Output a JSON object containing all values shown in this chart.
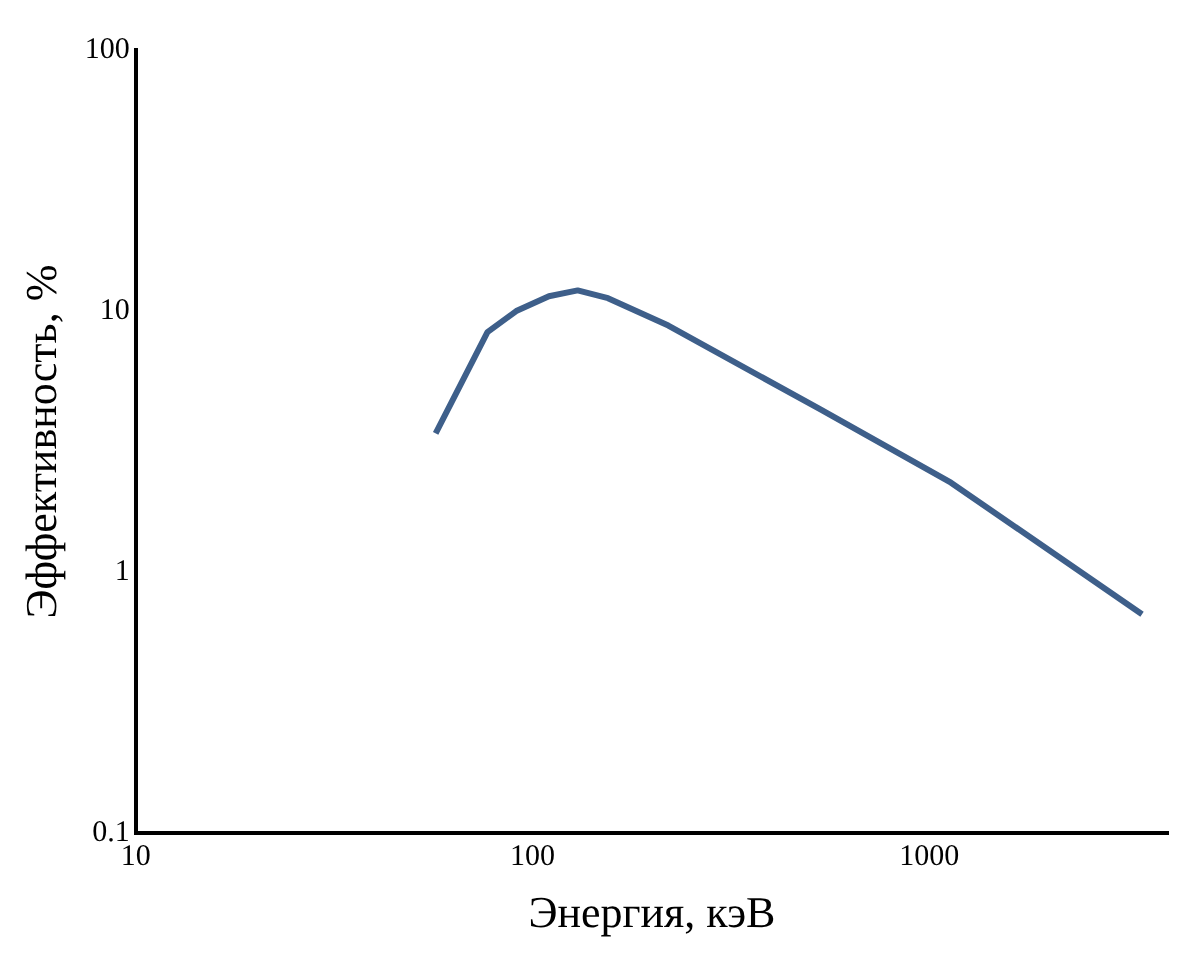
{
  "chart_data": {
    "type": "line",
    "xlabel": "Энергия, кэВ",
    "ylabel": "Эффективность, %",
    "x": [
      57,
      77,
      91,
      110,
      130,
      155,
      220,
      532,
      1135,
      3440
    ],
    "series": [
      {
        "color": "#3e5f8a",
        "values": [
          3.4,
          8.3,
          10,
          11.4,
          12,
          11.2,
          8.8,
          4.2,
          2.2,
          0.69
        ]
      }
    ],
    "log": "xy",
    "xlim": [
      10,
      4000
    ],
    "ylim": [
      0.1,
      100
    ],
    "xticks": [
      10,
      100,
      1000
    ],
    "yticks": [
      0.1,
      1,
      10,
      100
    ],
    "grid": false,
    "legend": false,
    "marker": "none",
    "line_style": "solid"
  }
}
